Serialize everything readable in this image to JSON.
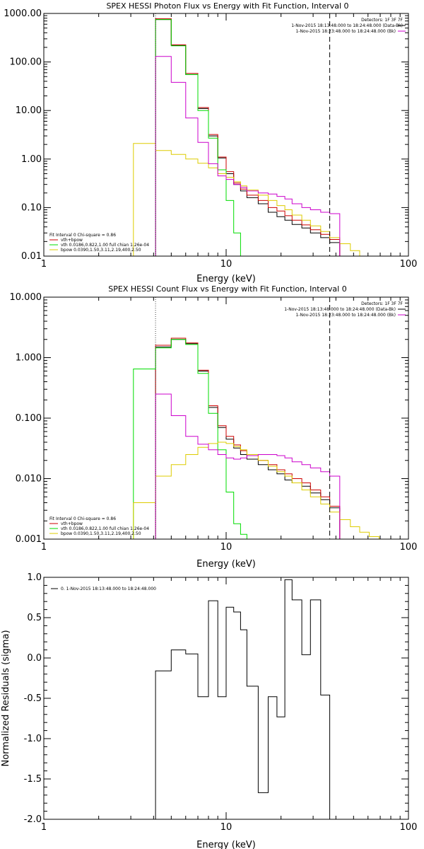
{
  "colors": {
    "sum": "#000000",
    "fit_total": "#cc0000",
    "vth": "#00dd00",
    "bpow": "#ddcc00",
    "background": "#cc00cc",
    "marker_left": "#cc00cc"
  },
  "chart_data": [
    {
      "type": "line",
      "title": "SPEX HESSI Photon Flux vs Energy with Fit Function, Interval 0",
      "xlabel": "Energy (keV)",
      "ylabel": "",
      "xscale": "log",
      "yscale": "log",
      "xlim": [
        1,
        100
      ],
      "ylim": [
        0.01,
        1000
      ],
      "xticks": [
        "1",
        "10",
        "100"
      ],
      "yticks": [
        "0.01",
        "0.10",
        "1.00",
        "10.00",
        "100.00",
        "1000.00"
      ],
      "vlines": [
        {
          "x": 4.1,
          "style": "dotted"
        },
        {
          "x": 37,
          "style": "dashed"
        }
      ],
      "header_lines": [
        "Detectors: 1F 3F 7F",
        "1-Nov-2015 18:13:48.000 to 18:24:48.000 (Data-Bk)",
        "1-Nov-2015 18:23:48.000 to 18:24:48.000 (Bk)"
      ],
      "fit_lines": [
        "Fit Interval 0   Chi-square = 0.86",
        "vth+bpow",
        "vth 0.0186,0.822,1.00  full chian 1.26e-04",
        "bpow 0.0390,1.50,3.11,2.19,400,2.50"
      ],
      "edges": [
        3.1,
        4.1,
        5.0,
        6.0,
        7.0,
        8.0,
        9.0,
        10.0,
        11.0,
        12.0,
        13.0,
        15.0,
        17.0,
        19.0,
        21.0,
        23.0,
        26.0,
        29.0,
        33.0,
        37.0,
        42.0,
        48.0,
        54.0
      ],
      "series": [
        {
          "name": "Data-Bk",
          "color_key": "sum",
          "x0": 4.1,
          "values": [
            750,
            220,
            55,
            11,
            3,
            1.05,
            0.5,
            0.3,
            0.22,
            0.16,
            0.12,
            0.08,
            0.065,
            0.055,
            0.045,
            0.038,
            0.03,
            0.024,
            0.019
          ]
        },
        {
          "name": "vth+bpow",
          "color_key": "fit_total",
          "x0": 4.1,
          "values": [
            780,
            225,
            58,
            11.5,
            3.2,
            1.1,
            0.55,
            0.32,
            0.24,
            0.18,
            0.14,
            0.1,
            0.085,
            0.068,
            0.055,
            0.044,
            0.035,
            0.028,
            0.022
          ]
        },
        {
          "name": "vth",
          "color_key": "vth",
          "x0": 4.1,
          "values": [
            750,
            215,
            55,
            10,
            2.7,
            0.6,
            0.14,
            0.03,
            0.008
          ]
        },
        {
          "name": "bpow",
          "color_key": "bpow",
          "x0": 3.1,
          "values": [
            2.1,
            1.5,
            1.25,
            1.0,
            0.82,
            0.66,
            0.5,
            0.42,
            0.34,
            0.28,
            0.23,
            0.18,
            0.14,
            0.11,
            0.09,
            0.07,
            0.055,
            0.042,
            0.032,
            0.024,
            0.018,
            0.013
          ]
        },
        {
          "name": "Bk",
          "color_key": "background",
          "x0": 4.1,
          "values": [
            130,
            38,
            7,
            2.2,
            0.8,
            0.45,
            0.38,
            0.3,
            0.26,
            0.22,
            0.2,
            0.19,
            0.17,
            0.15,
            0.12,
            0.1,
            0.09,
            0.08,
            0.075
          ]
        }
      ]
    },
    {
      "type": "line",
      "title": "SPEX HESSI Count Flux vs Energy with Fit Function, Interval 0",
      "xlabel": "Energy (keV)",
      "ylabel": "",
      "xscale": "log",
      "yscale": "log",
      "xlim": [
        1,
        100
      ],
      "ylim": [
        0.001,
        10
      ],
      "xticks": [
        "1",
        "10",
        "100"
      ],
      "yticks": [
        "0.001",
        "0.010",
        "0.100",
        "1.000",
        "10.000"
      ],
      "vlines": [
        {
          "x": 4.1,
          "style": "dotted"
        },
        {
          "x": 37,
          "style": "dashed"
        }
      ],
      "header_lines": [
        "Detectors: 1F 3F 7F",
        "1-Nov-2015 18:13:48.000 to 18:24:48.000 (Data-Bk)",
        "1-Nov-2015 18:23:48.000 to 18:24:48.000 (Bk)"
      ],
      "fit_lines": [
        "Fit Interval 0   Chi-square = 0.86",
        "vth+bpow",
        "vth 0.0186,0.822,1.00  full chian 1.26e-04",
        "bpow 0.0390,1.50,3.11,2.19,400,2.50"
      ],
      "edges": [
        3.1,
        4.1,
        5.0,
        6.0,
        7.0,
        8.0,
        9.0,
        10.0,
        11.0,
        12.0,
        13.0,
        15.0,
        17.0,
        19.0,
        21.0,
        23.0,
        26.0,
        29.0,
        33.0,
        37.0,
        42.0,
        48.0,
        54.0,
        61.0,
        69.0,
        78.0
      ],
      "series": [
        {
          "name": "Data-Bk",
          "color_key": "sum",
          "x0": 4.1,
          "values": [
            1.5,
            2.0,
            1.7,
            0.6,
            0.15,
            0.07,
            0.045,
            0.032,
            0.025,
            0.021,
            0.017,
            0.014,
            0.012,
            0.0095,
            0.0085,
            0.0075,
            0.0058,
            0.0045,
            0.0033
          ]
        },
        {
          "name": "vth+bpow",
          "color_key": "fit_total",
          "x0": 4.1,
          "values": [
            1.6,
            2.1,
            1.75,
            0.62,
            0.16,
            0.075,
            0.05,
            0.036,
            0.029,
            0.024,
            0.02,
            0.017,
            0.014,
            0.012,
            0.01,
            0.0085,
            0.0065,
            0.005,
            0.0035
          ]
        },
        {
          "name": "vth",
          "color_key": "vth",
          "x0": 3.1,
          "values": [
            0.65,
            1.45,
            2.0,
            1.65,
            0.55,
            0.12,
            0.03,
            0.006,
            0.0018,
            0.0012
          ]
        },
        {
          "name": "bpow",
          "color_key": "bpow",
          "x0": 3.1,
          "values": [
            0.004,
            0.011,
            0.017,
            0.025,
            0.033,
            0.038,
            0.04,
            0.038,
            0.034,
            0.03,
            0.025,
            0.02,
            0.016,
            0.013,
            0.011,
            0.0085,
            0.0065,
            0.005,
            0.0038,
            0.0028,
            0.0021,
            0.0016,
            0.0013,
            0.0011,
            0.001
          ]
        },
        {
          "name": "Bk",
          "color_key": "background",
          "x0": 4.1,
          "values": [
            0.25,
            0.11,
            0.05,
            0.037,
            0.03,
            0.025,
            0.022,
            0.021,
            0.022,
            0.024,
            0.025,
            0.025,
            0.024,
            0.022,
            0.019,
            0.017,
            0.015,
            0.013,
            0.011
          ]
        }
      ]
    },
    {
      "type": "line",
      "title": "",
      "xlabel": "Energy (keV)",
      "ylabel": "Normalized Residuals (sigma)",
      "xscale": "log",
      "yscale": "linear",
      "xlim": [
        1,
        100
      ],
      "ylim": [
        -2.0,
        1.0
      ],
      "xticks": [
        "1",
        "10",
        "100"
      ],
      "yticks": [
        "-2.0",
        "-1.5",
        "-1.0",
        "-0.5",
        "0.0",
        "0.5",
        "1.0"
      ],
      "legend": "0.  1-Nov-2015 18:13:48.000 to 18:24:48.000",
      "edges": [
        4.1,
        5.0,
        6.0,
        7.0,
        8.0,
        9.0,
        10.0,
        11.0,
        12.0,
        13.0,
        15.0,
        17.0,
        19.0,
        21.0,
        23.0,
        26.0,
        29.0,
        33.0,
        37.0
      ],
      "series": [
        {
          "name": "0.",
          "color_key": "sum",
          "x0": 4.1,
          "values": [
            -0.16,
            0.1,
            0.05,
            -0.48,
            0.71,
            -0.48,
            0.63,
            0.57,
            0.35,
            -0.35,
            -1.67,
            -0.48,
            -0.73,
            0.97,
            0.72,
            0.04,
            0.72,
            -0.46
          ]
        }
      ]
    }
  ]
}
